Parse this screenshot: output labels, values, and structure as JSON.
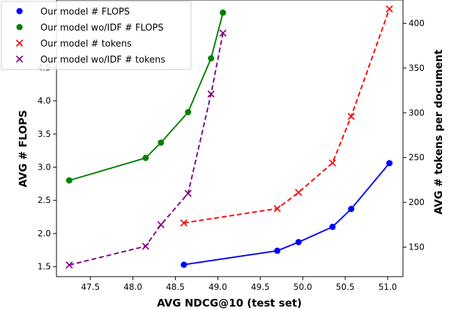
{
  "chart_data": {
    "type": "line",
    "xlabel": "AVG NDCG@10 (test set)",
    "ylabel": "AVG # FLOPS",
    "y2label": "AVG # tokens per document",
    "xlim": [
      47.1,
      51.18
    ],
    "ylim": [
      1.35,
      5.52
    ],
    "y2lim": [
      117,
      426
    ],
    "x_ticks": [
      "47.5",
      "48.0",
      "48.5",
      "49.0",
      "49.5",
      "50.0",
      "50.5",
      "51.0"
    ],
    "y_ticks": [
      "1.5",
      "2.0",
      "2.5",
      "3.0",
      "3.5",
      "4.0",
      "4.5"
    ],
    "y2_ticks": [
      "150",
      "200",
      "250",
      "300",
      "350",
      "400"
    ],
    "grid": false,
    "legend_position": "top-left",
    "series": [
      {
        "name": "Our model # FLOPS",
        "axis": "left",
        "marker": "circle",
        "line_style": "solid",
        "color": "#0000ff",
        "x": [
          48.6,
          49.7,
          49.95,
          50.35,
          50.57,
          51.02
        ],
        "y": [
          1.53,
          1.74,
          1.87,
          2.1,
          2.37,
          3.06
        ]
      },
      {
        "name": "Our model wo/IDF # FLOPS",
        "axis": "left",
        "marker": "circle",
        "line_style": "solid",
        "color": "#008000",
        "x": [
          47.25,
          48.15,
          48.33,
          48.65,
          48.92,
          49.06
        ],
        "y": [
          2.8,
          3.14,
          3.37,
          3.83,
          4.64,
          5.33
        ]
      },
      {
        "name": "Our model # tokens",
        "axis": "right",
        "marker": "x",
        "line_style": "dashed",
        "color": "#ff0000",
        "x": [
          48.6,
          49.7,
          49.95,
          50.35,
          50.57,
          51.02
        ],
        "y": [
          177,
          193,
          211,
          244,
          296,
          416
        ]
      },
      {
        "name": "Our model wo/IDF # tokens",
        "axis": "right",
        "marker": "x",
        "line_style": "dashed",
        "color": "#800080",
        "x": [
          47.25,
          48.15,
          48.33,
          48.65,
          48.92,
          49.06
        ],
        "y": [
          130,
          151,
          175,
          210,
          321,
          389
        ]
      }
    ]
  }
}
